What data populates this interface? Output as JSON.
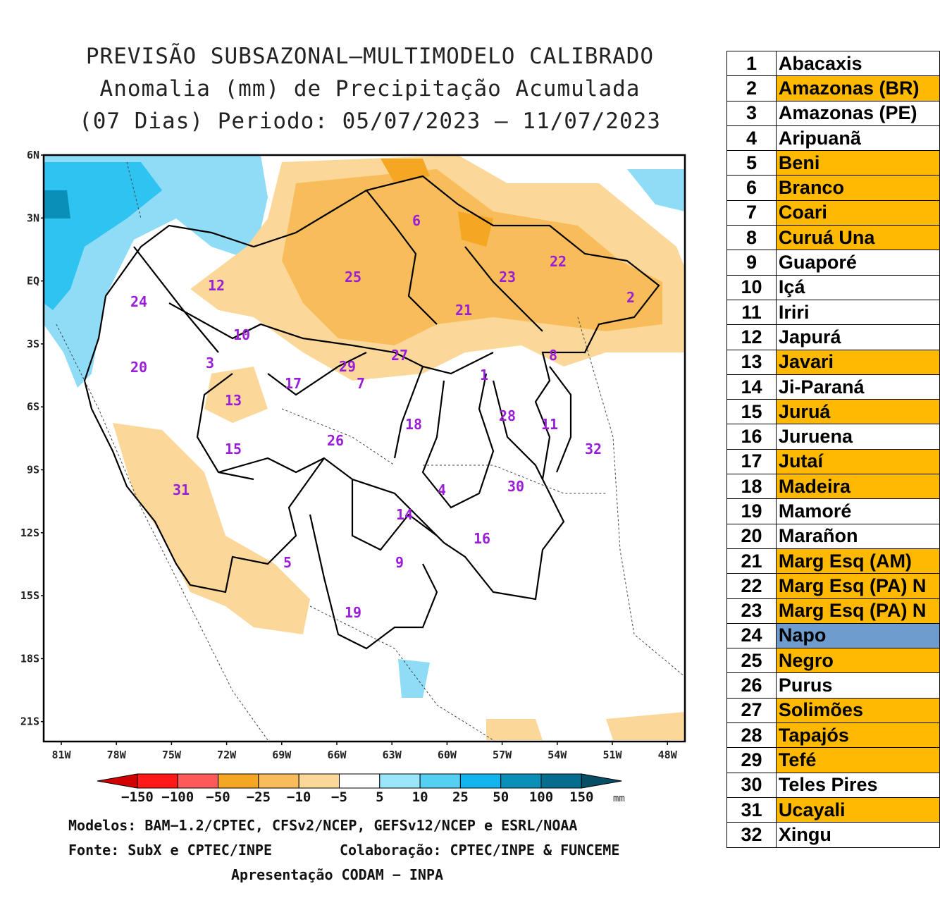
{
  "title": {
    "line1": "PREVISÃO SUBSAZONAL—MULTIMODELO CALIBRADO",
    "line2": "Anomalia (mm) de Precipitação Acumulada",
    "line3": "(07 Dias) Periodo: 05/07/2023 — 11/07/2023"
  },
  "map": {
    "lat_labels": [
      "6N",
      "3N",
      "EQ",
      "3S",
      "6S",
      "9S",
      "12S",
      "15S",
      "18S",
      "21S"
    ],
    "lon_labels": [
      "81W",
      "78W",
      "75W",
      "72W",
      "69W",
      "66W",
      "63W",
      "60W",
      "57W",
      "54W",
      "51W",
      "48W"
    ],
    "basin_labels": [
      {
        "id": "1",
        "name": "Abacaxis"
      },
      {
        "id": "2",
        "name": "Amazonas (BR)"
      },
      {
        "id": "3",
        "name": "Amazonas (PE)"
      },
      {
        "id": "4",
        "name": "Aripuanã"
      },
      {
        "id": "5",
        "name": "Beni"
      },
      {
        "id": "6",
        "name": "Branco"
      },
      {
        "id": "7",
        "name": "Coari"
      },
      {
        "id": "8",
        "name": "Curuá Una"
      },
      {
        "id": "9",
        "name": "Guaporé"
      },
      {
        "id": "10",
        "name": "Içá"
      },
      {
        "id": "11",
        "name": "Iriri"
      },
      {
        "id": "12",
        "name": "Japurá"
      },
      {
        "id": "13",
        "name": "Javari"
      },
      {
        "id": "14",
        "name": "Ji-Paraná"
      },
      {
        "id": "15",
        "name": "Juruá"
      },
      {
        "id": "16",
        "name": "Juruena"
      },
      {
        "id": "17",
        "name": "Jutaí"
      },
      {
        "id": "18",
        "name": "Madeira"
      },
      {
        "id": "19",
        "name": "Mamoré"
      },
      {
        "id": "20",
        "name": "Marañon"
      },
      {
        "id": "21",
        "name": "Marg Esq (AM)"
      },
      {
        "id": "22",
        "name": "Marg Esq (PA) N"
      },
      {
        "id": "23",
        "name": "Marg Esq (PA) N"
      },
      {
        "id": "24",
        "name": "Napo"
      },
      {
        "id": "25",
        "name": "Negro"
      },
      {
        "id": "26",
        "name": "Purus"
      },
      {
        "id": "27",
        "name": "Solimões"
      },
      {
        "id": "28",
        "name": "Tapajós"
      },
      {
        "id": "29",
        "name": "Tefé"
      },
      {
        "id": "30",
        "name": "Teles Pires"
      },
      {
        "id": "31",
        "name": "Ucayali"
      },
      {
        "id": "32",
        "name": "Xingu"
      }
    ]
  },
  "colorbar": {
    "labels": [
      "−150",
      "−100",
      "−50",
      "−25",
      "−10",
      "−5",
      "5",
      "10",
      "25",
      "50",
      "100",
      "150"
    ],
    "unit": "mm",
    "colors": [
      "#d30000",
      "#ff1a1a",
      "#ff5a5a",
      "#f5a623",
      "#f8bd5a",
      "#fbd89a",
      "#ffffff",
      "#9be6fa",
      "#55cff2",
      "#14b4ee",
      "#0a8fb8",
      "#066d8e",
      "#064e66"
    ]
  },
  "footer": {
    "models": "Modelos: BAM−1.2/CPTEC, CFSv2/NCEP, GEFSv12/NCEP e ESRL/NOAA",
    "source": "Fonte: SubX e CPTEC/INPE",
    "collab": "Colaboração: CPTEC/INPE & FUNCEME",
    "presentation": "Apresentação CODAM − INPA"
  },
  "legend_table": [
    {
      "num": "1",
      "name": "Abacaxis",
      "fill": "#ffffff"
    },
    {
      "num": "2",
      "name": "Amazonas (BR)",
      "fill": "#ffb900"
    },
    {
      "num": "3",
      "name": "Amazonas (PE)",
      "fill": "#ffffff"
    },
    {
      "num": "4",
      "name": "Aripuanã",
      "fill": "#ffffff"
    },
    {
      "num": "5",
      "name": "Beni",
      "fill": "#ffb900"
    },
    {
      "num": "6",
      "name": "Branco",
      "fill": "#ffb900"
    },
    {
      "num": "7",
      "name": "Coari",
      "fill": "#ffb900"
    },
    {
      "num": "8",
      "name": "Curuá Una",
      "fill": "#ffb900"
    },
    {
      "num": "9",
      "name": "Guaporé",
      "fill": "#ffffff"
    },
    {
      "num": "10",
      "name": "Içá",
      "fill": "#ffffff"
    },
    {
      "num": "11",
      "name": "Iriri",
      "fill": "#ffffff"
    },
    {
      "num": "12",
      "name": "Japurá",
      "fill": "#ffffff"
    },
    {
      "num": "13",
      "name": "Javari",
      "fill": "#ffb900"
    },
    {
      "num": "14",
      "name": "Ji-Paraná",
      "fill": "#ffffff"
    },
    {
      "num": "15",
      "name": "Juruá",
      "fill": "#ffb900"
    },
    {
      "num": "16",
      "name": "Juruena",
      "fill": "#ffffff"
    },
    {
      "num": "17",
      "name": "Jutaí",
      "fill": "#ffb900"
    },
    {
      "num": "18",
      "name": "Madeira",
      "fill": "#ffb900"
    },
    {
      "num": "19",
      "name": "Mamoré",
      "fill": "#ffffff"
    },
    {
      "num": "20",
      "name": "Marañon",
      "fill": "#ffffff"
    },
    {
      "num": "21",
      "name": "Marg Esq (AM)",
      "fill": "#ffb900"
    },
    {
      "num": "22",
      "name": "Marg Esq (PA) N",
      "fill": "#ffb900"
    },
    {
      "num": "23",
      "name": "Marg Esq (PA) N",
      "fill": "#ffb900"
    },
    {
      "num": "24",
      "name": "Napo",
      "fill": "#6e9ccf"
    },
    {
      "num": "25",
      "name": "Negro",
      "fill": "#ffb900"
    },
    {
      "num": "26",
      "name": "Purus",
      "fill": "#ffffff"
    },
    {
      "num": "27",
      "name": "Solimões",
      "fill": "#ffb900"
    },
    {
      "num": "28",
      "name": "Tapajós",
      "fill": "#ffb900"
    },
    {
      "num": "29",
      "name": "Tefé",
      "fill": "#ffb900"
    },
    {
      "num": "30",
      "name": "Teles Pires",
      "fill": "#ffffff"
    },
    {
      "num": "31",
      "name": "Ucayali",
      "fill": "#ffb900"
    },
    {
      "num": "32",
      "name": "Xingu",
      "fill": "#ffffff"
    }
  ]
}
